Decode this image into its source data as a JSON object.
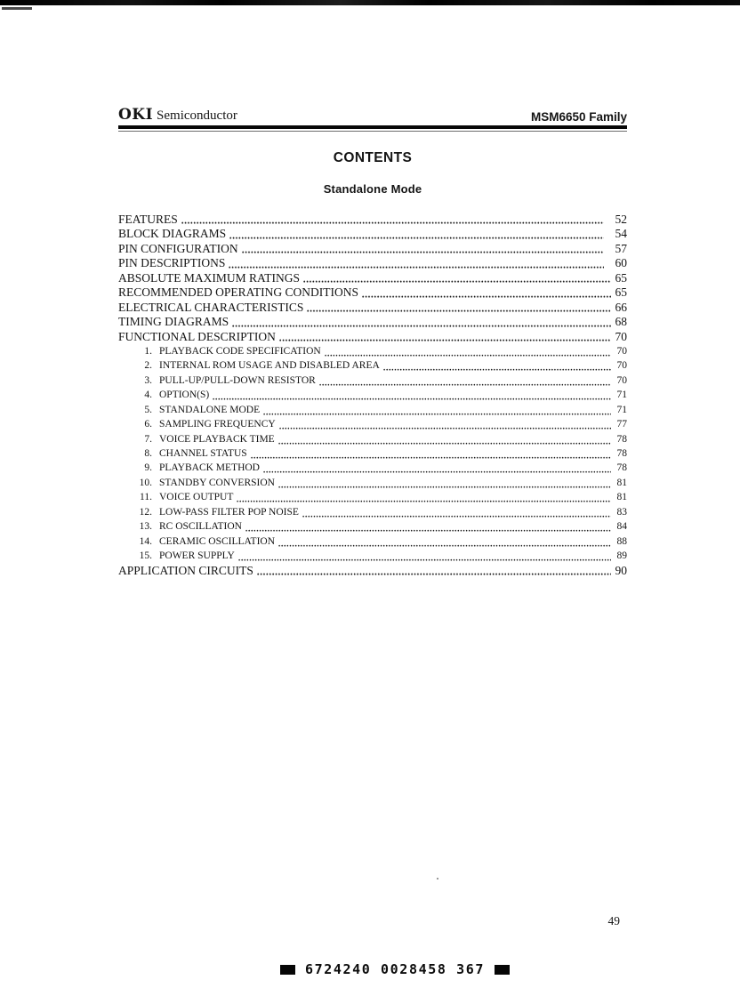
{
  "header": {
    "brand_bold": "OKI",
    "brand_rest": "Semiconductor",
    "product": "MSM6650 Family"
  },
  "title": "CONTENTS",
  "subtitle": "Standalone Mode",
  "toc": {
    "entries": [
      {
        "label": "FEATURES",
        "page": "52",
        "level": 0,
        "space_before_page": true
      },
      {
        "label": "BLOCK DIAGRAMS",
        "page": "54",
        "level": 0,
        "space_before_page": true
      },
      {
        "label": "PIN CONFIGURATION",
        "page": "57",
        "level": 0,
        "space_before_page": true
      },
      {
        "label": "PIN DESCRIPTIONS",
        "page": "60",
        "level": 0,
        "space_before_page": true
      },
      {
        "label": "ABSOLUTE MAXIMUM RATINGS",
        "page": "65",
        "level": 0,
        "space_before_page": false
      },
      {
        "label": "RECOMMENDED OPERATING CONDITIONS",
        "page": "65",
        "level": 0,
        "space_before_page": false
      },
      {
        "label": "ELECTRICAL CHARACTERISTICS",
        "page": "66",
        "level": 0,
        "space_before_page": false
      },
      {
        "label": "TIMING DIAGRAMS",
        "page": "68",
        "level": 0,
        "space_before_page": false
      },
      {
        "label": "FUNCTIONAL DESCRIPTION",
        "page": "70",
        "level": 0,
        "space_before_page": false
      },
      {
        "num": "1.",
        "label": "PLAYBACK CODE SPECIFICATION",
        "page": "70",
        "level": 1
      },
      {
        "num": "2.",
        "label": "INTERNAL ROM USAGE AND DISABLED AREA",
        "page": "70",
        "level": 1
      },
      {
        "num": "3.",
        "label": "PULL-UP/PULL-DOWN RESISTOR",
        "page": "70",
        "level": 1
      },
      {
        "num": "4.",
        "label": "OPTION(S)",
        "page": "71",
        "level": 1
      },
      {
        "num": "5.",
        "label": "STANDALONE MODE",
        "page": "71",
        "level": 1
      },
      {
        "num": "6.",
        "label": "SAMPLING FREQUENCY",
        "page": "77",
        "level": 1
      },
      {
        "num": "7.",
        "label": "VOICE PLAYBACK TIME",
        "page": "78",
        "level": 1
      },
      {
        "num": "8.",
        "label": "CHANNEL STATUS",
        "page": "78",
        "level": 1
      },
      {
        "num": "9.",
        "label": "PLAYBACK METHOD",
        "page": "78",
        "level": 1
      },
      {
        "num": "10.",
        "label": "STANDBY CONVERSION",
        "page": "81",
        "level": 1
      },
      {
        "num": "11.",
        "label": "VOICE OUTPUT",
        "page": "81",
        "level": 1
      },
      {
        "num": "12.",
        "label": "LOW-PASS FILTER POP NOISE",
        "page": "83",
        "level": 1
      },
      {
        "num": "13.",
        "label": "RC OSCILLATION",
        "page": "84",
        "level": 1
      },
      {
        "num": "14.",
        "label": "CERAMIC OSCILLATION",
        "page": "88",
        "level": 1
      },
      {
        "num": "15.",
        "label": "POWER SUPPLY",
        "page": "89",
        "level": 1
      },
      {
        "label": "APPLICATION CIRCUITS",
        "page": "90",
        "level": 0,
        "space_before_page": false
      }
    ]
  },
  "footer": {
    "page_number": "49",
    "doc_code": "6724240 0028458 367"
  }
}
